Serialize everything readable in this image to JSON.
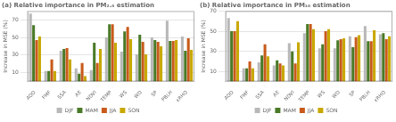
{
  "chart_data": [
    {
      "type": "bar",
      "title": "(a)",
      "subtitle": "Relative importance in PM₂.₅ estimation",
      "categories": [
        "AOD",
        "FMF",
        "SSA",
        "AE",
        "NDVI",
        "TEMP",
        "WS",
        "WD",
        "SP",
        "PBLH",
        "εRHO"
      ],
      "ylabel": "Increase in MSE (%)",
      "series": [
        {
          "name": "DJF",
          "color": "#b8b8b8",
          "values": [
            77,
            12,
            35,
            15,
            13,
            50,
            34,
            31,
            50,
            69,
            51
          ]
        },
        {
          "name": "MAM",
          "color": "#4a7a28",
          "values": [
            64,
            12,
            37,
            9,
            44,
            65,
            57,
            53,
            47,
            46,
            35
          ]
        },
        {
          "name": "JJA",
          "color": "#c85a1a",
          "values": [
            47,
            25,
            38,
            21,
            21,
            65,
            62,
            45,
            45,
            46,
            49
          ]
        },
        {
          "name": "SON",
          "color": "#c8a800",
          "values": [
            51,
            12,
            25,
            6,
            37,
            44,
            48,
            31,
            40,
            47,
            36
          ]
        }
      ],
      "ylim": [
        0,
        80
      ],
      "yticks": [
        10,
        30,
        50,
        70
      ],
      "grid": true,
      "legend": "bottom"
    },
    {
      "type": "bar",
      "title": "(b)",
      "subtitle": "Relative importance in PM₁₀ estimation",
      "categories": [
        "AOD",
        "FMF",
        "SSA",
        "AE",
        "NDVI",
        "TEMP",
        "WS",
        "WD",
        "SP",
        "PBLH",
        "εRHO"
      ],
      "ylabel": "Increase in MSE (%)",
      "series": [
        {
          "name": "DJF",
          "color": "#b8b8b8",
          "values": [
            63,
            13,
            19,
            16,
            38,
            48,
            33,
            33,
            45,
            55,
            47
          ]
        },
        {
          "name": "MAM",
          "color": "#4a7a28",
          "values": [
            50,
            13,
            26,
            21,
            30,
            57,
            37,
            41,
            34,
            40,
            48
          ]
        },
        {
          "name": "JJA",
          "color": "#c85a1a",
          "values": [
            50,
            20,
            37,
            18,
            18,
            57,
            50,
            42,
            44,
            40,
            42
          ]
        },
        {
          "name": "SON",
          "color": "#c8a800",
          "values": [
            60,
            13,
            25,
            16,
            39,
            52,
            52,
            43,
            46,
            51,
            45
          ]
        }
      ],
      "ylim": [
        0,
        70
      ],
      "yticks": [
        10,
        30,
        50,
        70
      ],
      "grid": true,
      "legend": "bottom"
    }
  ]
}
